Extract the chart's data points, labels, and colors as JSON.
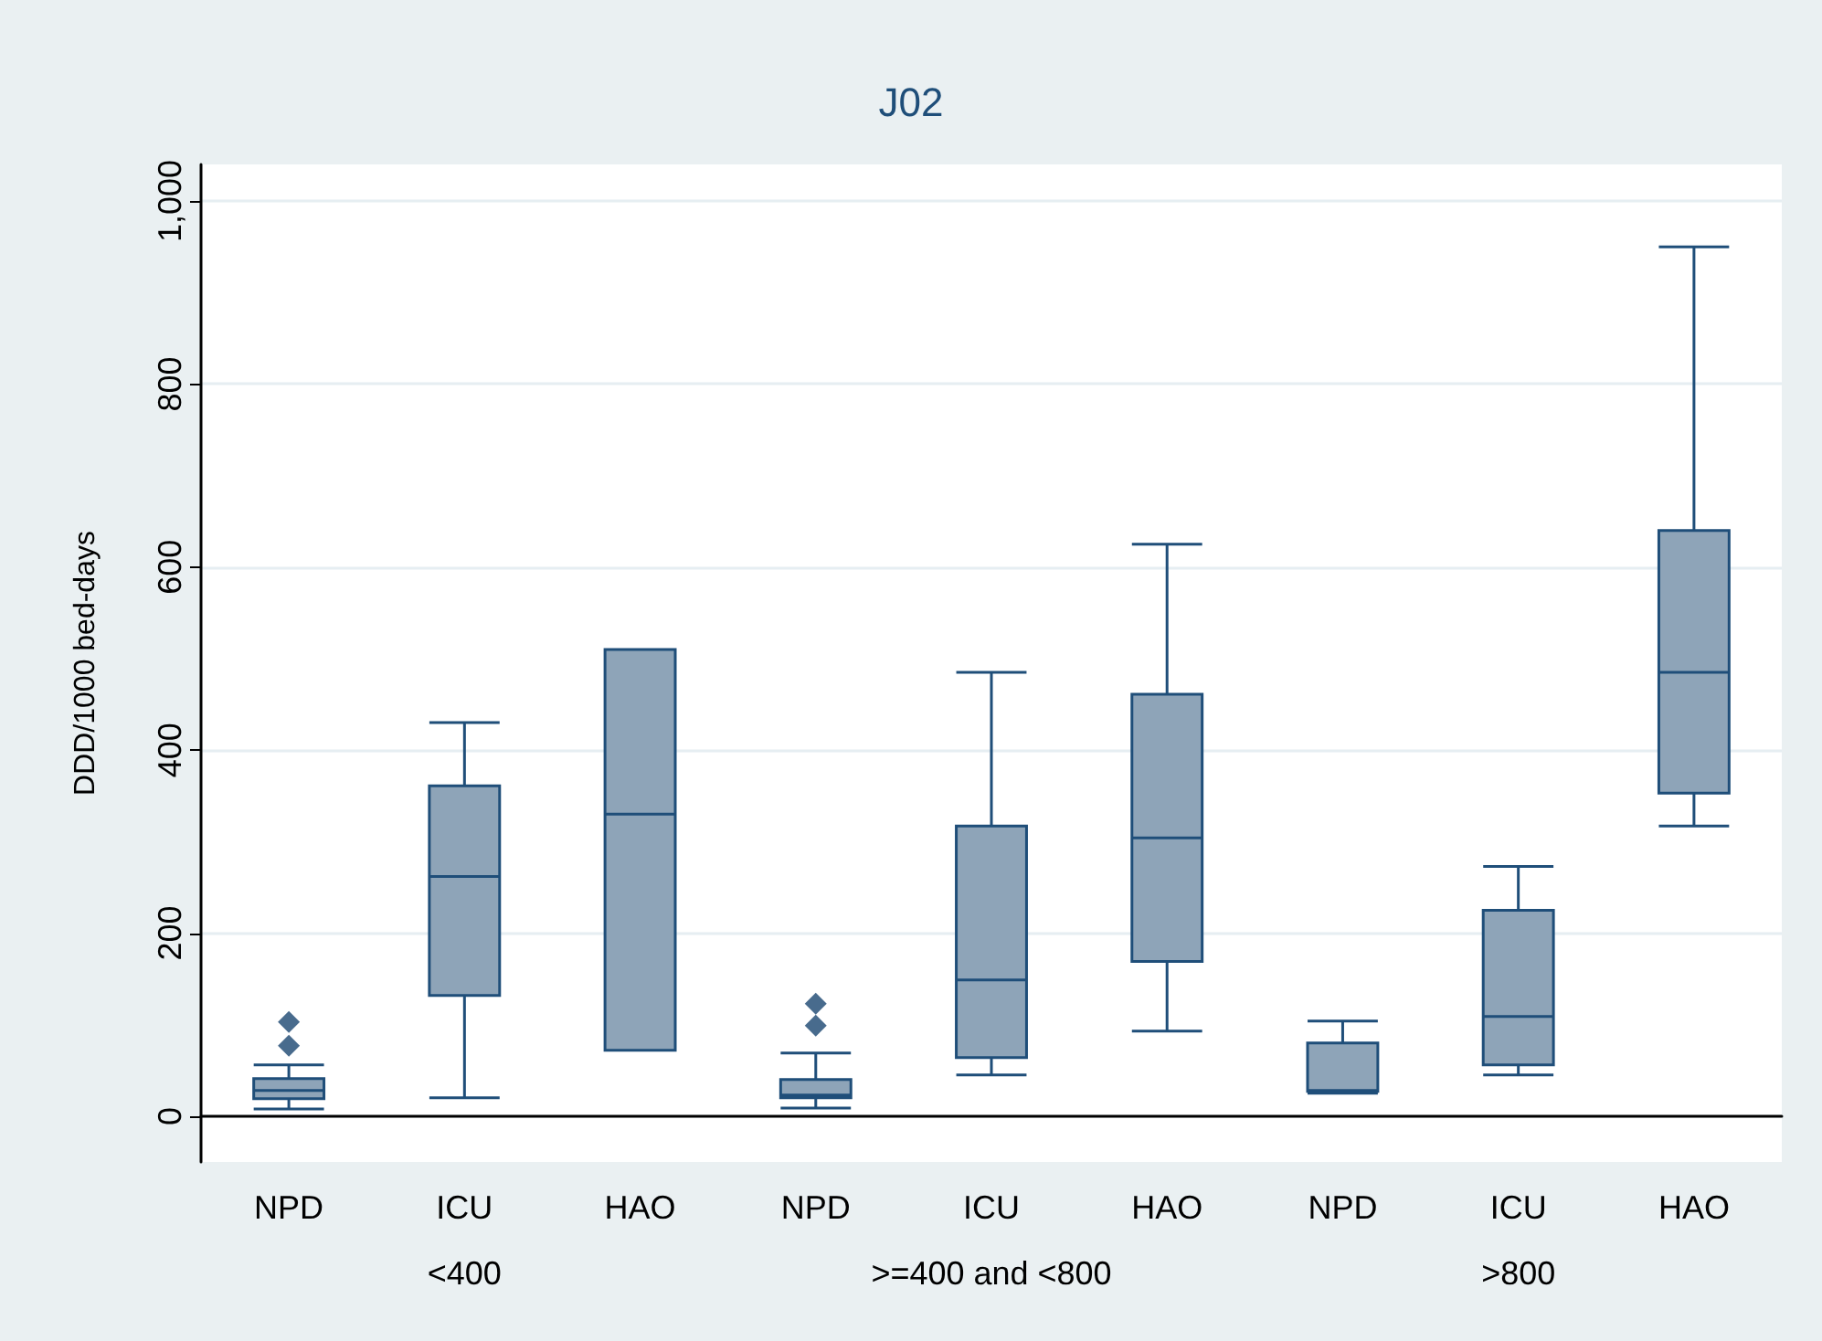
{
  "chart_data": {
    "type": "box",
    "title": "J02",
    "ylabel": "DDD/1000 bed-days",
    "categories": [
      "NPD",
      "ICU",
      "HAO",
      "NPD",
      "ICU",
      "HAO",
      "NPD",
      "ICU",
      "HAO"
    ],
    "annotations": [
      "<400",
      ">=400 and <800",
      ">800"
    ],
    "series": [
      {
        "color": "#8ea4b8",
        "boxes": [
          {
            "low": 8,
            "q1": 19,
            "median": 28,
            "q3": 41,
            "high": 56,
            "outliers": [
              77,
              103
            ]
          },
          {
            "low": 20,
            "q1": 132,
            "median": 262,
            "q3": 361,
            "high": 430
          },
          {
            "low": 72,
            "q1": 72,
            "median": 330,
            "q3": 510,
            "high": 510
          },
          {
            "low": 9,
            "q1": 20,
            "median": 23,
            "q3": 40,
            "high": 69,
            "outliers": [
              99,
              123
            ]
          },
          {
            "low": 45,
            "q1": 64,
            "median": 149,
            "q3": 317,
            "high": 485
          },
          {
            "low": 93,
            "q1": 169,
            "median": 304,
            "q3": 461,
            "high": 625
          },
          {
            "low": 25,
            "q1": 27,
            "median": 28,
            "q3": 80,
            "high": 104
          },
          {
            "low": 45,
            "q1": 56,
            "median": 109,
            "q3": 225,
            "high": 273
          },
          {
            "low": 317,
            "q1": 353,
            "median": 485,
            "q3": 640,
            "high": 950
          }
        ]
      }
    ],
    "ylim": [
      -50,
      1040
    ],
    "yticks": [
      0,
      200,
      400,
      600,
      800,
      {
        "value": 1000,
        "label": "1,000"
      }
    ],
    "grid": "y",
    "marker": "diamond"
  }
}
